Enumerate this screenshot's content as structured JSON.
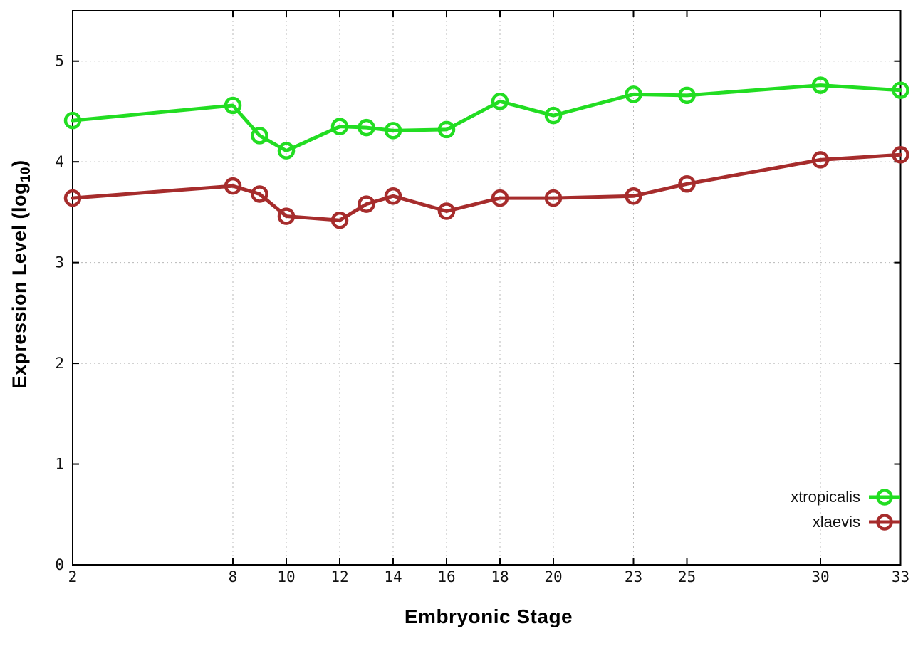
{
  "chart_data": {
    "type": "line",
    "title": "",
    "xlabel": "Embryonic Stage",
    "ylabel": "Expression Level (log10)",
    "ylabel_parts": {
      "base": "Expression Level (log",
      "sub": "10",
      "close": ")"
    },
    "x": [
      2,
      8,
      9,
      10,
      12,
      13,
      14,
      16,
      18,
      20,
      23,
      25,
      30,
      33
    ],
    "xticks": [
      2,
      8,
      10,
      12,
      14,
      16,
      18,
      20,
      23,
      25,
      30,
      33
    ],
    "yticks": [
      0,
      1,
      2,
      3,
      4,
      5
    ],
    "xlim": [
      2,
      33
    ],
    "ylim": [
      0,
      5.5
    ],
    "grid": true,
    "legend_position": "bottom-right",
    "series": [
      {
        "name": "xtropicalis",
        "color": "#22dd22",
        "values": [
          4.41,
          4.56,
          4.26,
          4.11,
          4.35,
          4.34,
          4.31,
          4.32,
          4.6,
          4.46,
          4.67,
          4.66,
          4.76,
          4.71
        ]
      },
      {
        "name": "xlaevis",
        "color": "#a62c2c",
        "values": [
          3.64,
          3.76,
          3.68,
          3.46,
          3.42,
          3.58,
          3.66,
          3.51,
          3.64,
          3.64,
          3.66,
          3.78,
          4.02,
          4.07
        ]
      }
    ],
    "style": {
      "axis_color": "#000000",
      "grid_color": "#b8b8b8",
      "tick_label_color": "#111111",
      "line_width": 5,
      "marker_radius": 10
    }
  }
}
